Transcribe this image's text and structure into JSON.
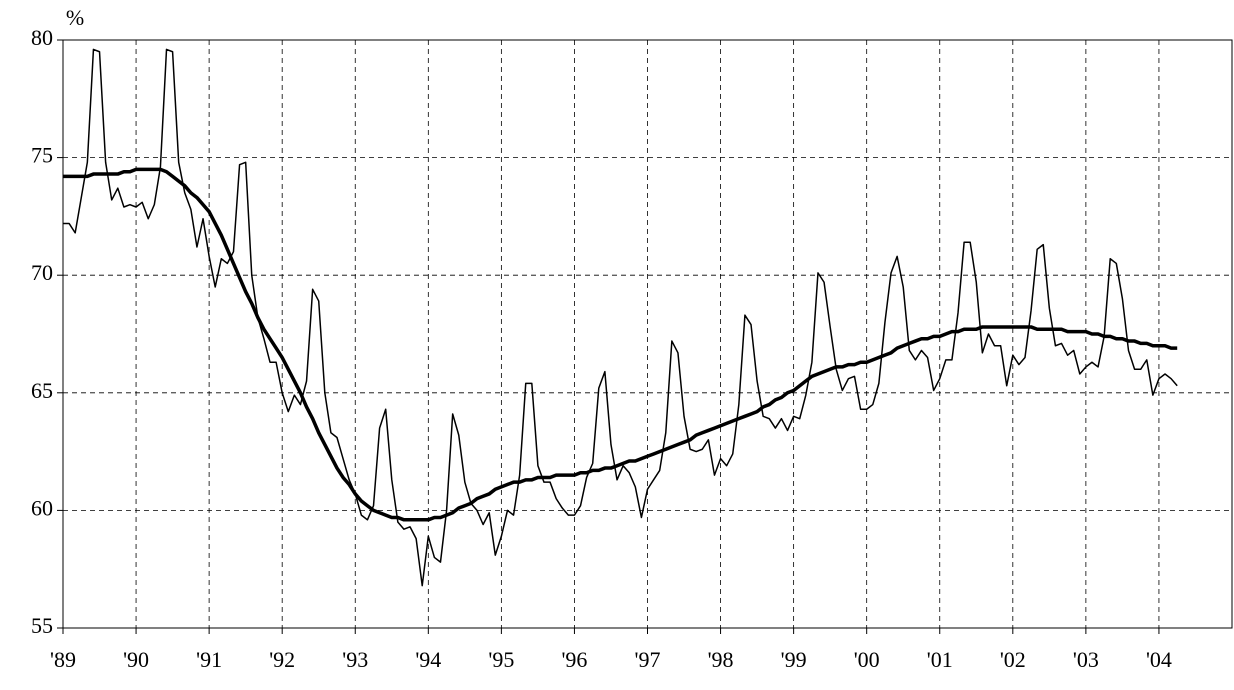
{
  "chart_data": {
    "type": "line",
    "y_unit": "%",
    "categories": [
      "'89",
      null,
      null,
      null,
      null,
      null,
      null,
      null,
      null,
      null,
      null,
      null,
      "'90",
      null,
      null,
      null,
      null,
      null,
      null,
      null,
      null,
      null,
      null,
      null,
      "'91",
      null,
      null,
      null,
      null,
      null,
      null,
      null,
      null,
      null,
      null,
      null,
      "'92",
      null,
      null,
      null,
      null,
      null,
      null,
      null,
      null,
      null,
      null,
      null,
      "'93",
      null,
      null,
      null,
      null,
      null,
      null,
      null,
      null,
      null,
      null,
      null,
      "'94",
      null,
      null,
      null,
      null,
      null,
      null,
      null,
      null,
      null,
      null,
      null,
      "'95",
      null,
      null,
      null,
      null,
      null,
      null,
      null,
      null,
      null,
      null,
      null,
      "'96",
      null,
      null,
      null,
      null,
      null,
      null,
      null,
      null,
      null,
      null,
      null,
      "'97",
      null,
      null,
      null,
      null,
      null,
      null,
      null,
      null,
      null,
      null,
      null,
      "'98",
      null,
      null,
      null,
      null,
      null,
      null,
      null,
      null,
      null,
      null,
      null,
      "'99",
      null,
      null,
      null,
      null,
      null,
      null,
      null,
      null,
      null,
      null,
      null,
      "'00",
      null,
      null,
      null,
      null,
      null,
      null,
      null,
      null,
      null,
      null,
      null,
      "'01",
      null,
      null,
      null,
      null,
      null,
      null,
      null,
      null,
      null,
      null,
      null,
      "'02",
      null,
      null,
      null,
      null,
      null,
      null,
      null,
      null,
      null,
      null,
      null,
      "'03",
      null,
      null,
      null,
      null,
      null,
      null,
      null,
      null,
      null,
      null,
      null,
      "'04",
      null,
      null,
      null
    ],
    "series": [
      {
        "color": "#000000",
        "values": [
          72.2,
          72.2,
          71.8,
          73.3,
          74.8,
          79.6,
          79.5,
          74.8,
          73.2,
          73.7,
          72.9,
          73.0,
          72.9,
          73.1,
          72.4,
          73.0,
          74.6,
          79.6,
          79.5,
          74.8,
          73.5,
          72.8,
          71.2,
          72.4,
          70.8,
          69.5,
          70.7,
          70.5,
          71.0,
          74.7,
          74.8,
          70.0,
          68.2,
          67.3,
          66.3,
          66.3,
          65.0,
          64.2,
          64.9,
          64.5,
          65.5,
          69.4,
          68.9,
          65.0,
          63.3,
          63.1,
          62.2,
          61.3,
          60.7,
          59.8,
          59.6,
          60.2,
          63.5,
          64.3,
          61.3,
          59.5,
          59.2,
          59.3,
          58.8,
          56.8,
          58.9,
          58.0,
          57.8,
          60.0,
          64.1,
          63.2,
          61.2,
          60.3,
          60.0,
          59.4,
          59.9,
          58.1,
          58.9,
          60.0,
          59.8,
          61.5,
          65.4,
          65.4,
          61.9,
          61.2,
          61.2,
          60.5,
          60.1,
          59.8,
          59.8,
          60.2,
          61.4,
          62.0,
          65.2,
          65.9,
          62.8,
          61.3,
          61.9,
          61.6,
          61.0,
          59.7,
          60.9,
          61.3,
          61.7,
          63.3,
          67.2,
          66.7,
          64.0,
          62.6,
          62.5,
          62.6,
          63.0,
          61.5,
          62.2,
          61.9,
          62.4,
          64.5,
          68.3,
          67.9,
          65.5,
          64.0,
          63.9,
          63.5,
          63.9,
          63.4,
          64.0,
          63.9,
          64.9,
          66.3,
          70.1,
          69.7,
          67.8,
          66.0,
          65.1,
          65.6,
          65.7,
          64.3,
          64.3,
          64.5,
          65.4,
          68.0,
          70.1,
          70.8,
          69.5,
          66.8,
          66.4,
          66.8,
          66.5,
          65.1,
          65.6,
          66.4,
          66.4,
          68.4,
          71.4,
          71.4,
          69.7,
          66.7,
          67.5,
          67.0,
          67.0,
          65.3,
          66.6,
          66.2,
          66.5,
          68.5,
          71.1,
          71.3,
          68.6,
          67.0,
          67.1,
          66.6,
          66.8,
          65.8,
          66.1,
          66.3,
          66.1,
          67.4,
          70.7,
          70.5,
          69.0,
          66.8,
          66.0,
          66.0,
          66.4,
          64.9,
          65.6,
          65.8,
          65.6,
          65.3
        ]
      },
      {
        "color": "#000000",
        "values": [
          74.2,
          74.2,
          74.2,
          74.2,
          74.2,
          74.3,
          74.3,
          74.3,
          74.3,
          74.3,
          74.4,
          74.4,
          74.5,
          74.5,
          74.5,
          74.5,
          74.5,
          74.4,
          74.2,
          74.0,
          73.8,
          73.5,
          73.3,
          73.0,
          72.7,
          72.2,
          71.7,
          71.1,
          70.5,
          69.9,
          69.3,
          68.8,
          68.2,
          67.7,
          67.3,
          66.9,
          66.5,
          66.0,
          65.5,
          65.0,
          64.4,
          63.9,
          63.3,
          62.8,
          62.3,
          61.8,
          61.4,
          61.1,
          60.7,
          60.4,
          60.2,
          60.0,
          59.9,
          59.8,
          59.7,
          59.7,
          59.6,
          59.6,
          59.6,
          59.6,
          59.6,
          59.7,
          59.7,
          59.8,
          59.9,
          60.1,
          60.2,
          60.3,
          60.5,
          60.6,
          60.7,
          60.9,
          61.0,
          61.1,
          61.2,
          61.2,
          61.3,
          61.3,
          61.4,
          61.4,
          61.4,
          61.5,
          61.5,
          61.5,
          61.5,
          61.6,
          61.6,
          61.7,
          61.7,
          61.8,
          61.8,
          61.9,
          62.0,
          62.1,
          62.1,
          62.2,
          62.3,
          62.4,
          62.5,
          62.6,
          62.7,
          62.8,
          62.9,
          63.0,
          63.2,
          63.3,
          63.4,
          63.5,
          63.6,
          63.7,
          63.8,
          63.9,
          64.0,
          64.1,
          64.2,
          64.4,
          64.5,
          64.7,
          64.8,
          65.0,
          65.1,
          65.3,
          65.5,
          65.7,
          65.8,
          65.9,
          66.0,
          66.1,
          66.1,
          66.2,
          66.2,
          66.3,
          66.3,
          66.4,
          66.5,
          66.6,
          66.7,
          66.9,
          67.0,
          67.1,
          67.2,
          67.3,
          67.3,
          67.4,
          67.4,
          67.5,
          67.6,
          67.6,
          67.7,
          67.7,
          67.7,
          67.8,
          67.8,
          67.8,
          67.8,
          67.8,
          67.8,
          67.8,
          67.8,
          67.8,
          67.7,
          67.7,
          67.7,
          67.7,
          67.7,
          67.6,
          67.6,
          67.6,
          67.6,
          67.5,
          67.5,
          67.4,
          67.4,
          67.3,
          67.3,
          67.2,
          67.2,
          67.1,
          67.1,
          67.0,
          67.0,
          67.0,
          66.9,
          66.9
        ]
      }
    ],
    "ylim": [
      55,
      80
    ],
    "yticks": [
      55,
      60,
      65,
      70,
      75,
      80
    ],
    "grid": true
  }
}
